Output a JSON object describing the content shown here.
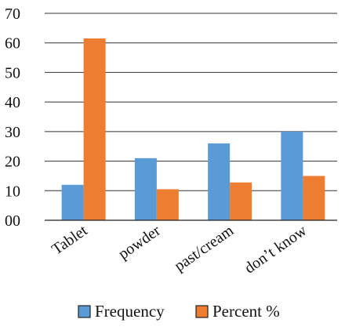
{
  "chart_data": {
    "type": "bar",
    "title": "",
    "xlabel": "",
    "ylabel": "",
    "categories": [
      "Tablet",
      "powder",
      "past/cream",
      "don’t know"
    ],
    "series": [
      {
        "name": "Frequency",
        "color": "#5B9BD5",
        "values": [
          12,
          21,
          26,
          30
        ]
      },
      {
        "name": "Percent %",
        "color": "#ED7D31",
        "values": [
          61.5,
          10.5,
          12.8,
          15
        ]
      }
    ],
    "ylim": [
      0,
      70
    ],
    "yticks": [
      0,
      10,
      20,
      30,
      40,
      50,
      60,
      70
    ],
    "ytick_labels": [
      "00",
      "10",
      "20",
      "30",
      "40",
      "50",
      "60",
      "70"
    ],
    "grid": true,
    "legend_position": "bottom"
  }
}
